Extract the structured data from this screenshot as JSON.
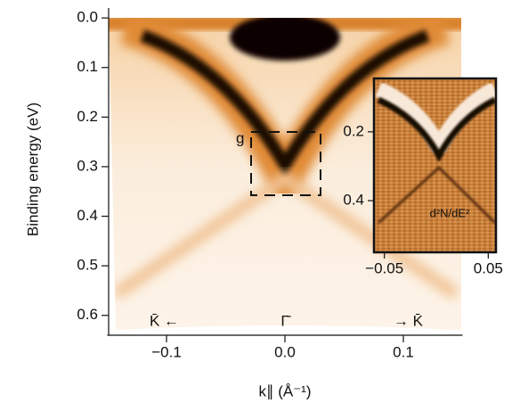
{
  "chart_data": [
    {
      "type": "heatmap",
      "x_label": "k∥ (Å⁻¹)",
      "y_label": "Binding energy (eV)",
      "xlim": [
        -0.15,
        0.15
      ],
      "xticks": [
        {
          "value": -0.1,
          "label": "−0.1"
        },
        {
          "value": 0,
          "label": "0.0"
        },
        0.1
      ],
      "ylim": [
        -0.02,
        0.64
      ],
      "yticks": [
        {
          "value": 0,
          "label": "0.0"
        },
        0.1,
        0.2,
        0.3,
        0.4,
        0.5,
        0.6
      ],
      "annotations": [
        "g",
        "K̄ ←",
        "Γ̄",
        "→ K̄"
      ]
    },
    {
      "type": "heatmap",
      "xlim": [
        -0.06,
        0.06
      ],
      "xticks": [
        {
          "value": -0.05,
          "label": "−0.05"
        },
        0.05
      ],
      "ylim": [
        0.045,
        0.55
      ],
      "yticks": [
        0.2,
        0.4
      ],
      "annotations": [
        "d²N/dE²"
      ]
    }
  ]
}
